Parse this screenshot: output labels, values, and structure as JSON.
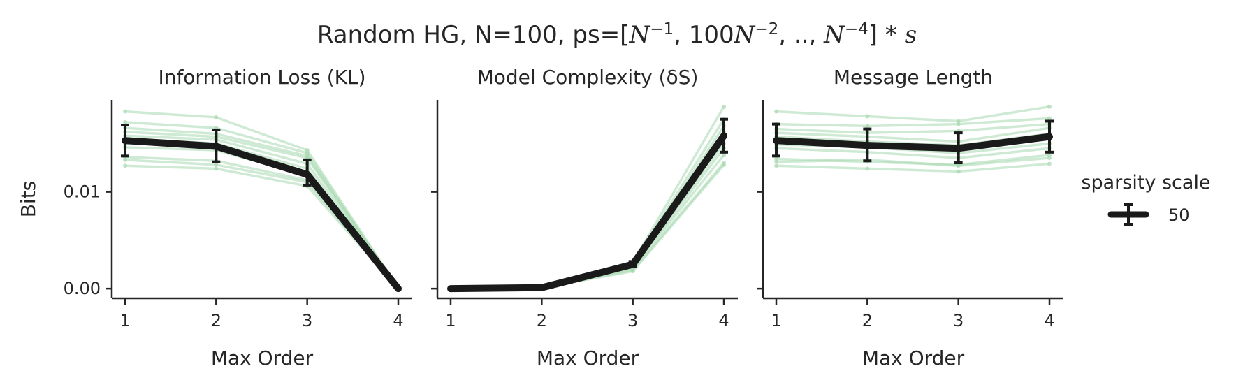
{
  "figure": {
    "title_prefix": "Random HG, N=100, ps=[",
    "title_t1": "N",
    "title_e1": "−1",
    "title_sep1": ", 100",
    "title_t2": "N",
    "title_e2": "−2",
    "title_sep2": ", ..,  ",
    "title_t3": "N",
    "title_e3": "−4",
    "title_end": "] * ",
    "title_s": "s"
  },
  "legend": {
    "title": "sparsity scale",
    "entries": [
      {
        "label": "50",
        "color": "#1a1a1a"
      }
    ]
  },
  "colors": {
    "mean": "#1a1a1a",
    "samples": "#a8d8b0",
    "axis": "#262626"
  },
  "chart_data": [
    {
      "type": "line",
      "title": "Information Loss (KL)",
      "xlabel": "Max Order",
      "ylabel": "Bits",
      "x": [
        1,
        2,
        3,
        4
      ],
      "xticks": [
        "1",
        "2",
        "3",
        "4"
      ],
      "yticks": [
        {
          "value": 0.0,
          "label": "0.00"
        },
        {
          "value": 0.01,
          "label": "0.01"
        }
      ],
      "ylim": [
        -0.001,
        0.0195
      ],
      "mean": {
        "name": "50",
        "values": [
          0.0153,
          0.0147,
          0.0118,
          0.0
        ],
        "err_low": [
          0.0137,
          0.0131,
          0.0107,
          0.0
        ],
        "err_high": [
          0.0169,
          0.0164,
          0.0133,
          0.0
        ]
      },
      "samples": [
        [
          0.0183,
          0.0177,
          0.0143,
          0.0
        ],
        [
          0.0172,
          0.0166,
          0.014,
          0.0
        ],
        [
          0.0166,
          0.016,
          0.0137,
          0.0
        ],
        [
          0.0162,
          0.0157,
          0.0135,
          0.0
        ],
        [
          0.0158,
          0.0154,
          0.0129,
          0.0
        ],
        [
          0.0155,
          0.015,
          0.0124,
          0.0
        ],
        [
          0.015,
          0.0147,
          0.012,
          0.0
        ],
        [
          0.0146,
          0.0143,
          0.0117,
          0.0
        ],
        [
          0.0136,
          0.0132,
          0.0112,
          0.0
        ],
        [
          0.0133,
          0.0128,
          0.011,
          0.0
        ],
        [
          0.0127,
          0.0124,
          0.0106,
          0.0
        ]
      ]
    },
    {
      "type": "line",
      "title": "Model Complexity (δS)",
      "xlabel": "Max Order",
      "ylabel": "",
      "x": [
        1,
        2,
        3,
        4
      ],
      "xticks": [
        "1",
        "2",
        "3",
        "4"
      ],
      "yticks": [
        {
          "value": 0.0,
          "label": ""
        },
        {
          "value": 0.01,
          "label": ""
        }
      ],
      "ylim": [
        -0.001,
        0.0195
      ],
      "mean": {
        "name": "50",
        "values": [
          0.0,
          0.0001,
          0.0025,
          0.0158
        ],
        "err_low": [
          0.0,
          0.0001,
          0.0023,
          0.0141
        ],
        "err_high": [
          0.0,
          0.0001,
          0.0028,
          0.0175
        ]
      },
      "samples": [
        [
          0.0,
          0.0001,
          0.0027,
          0.0188
        ],
        [
          0.0,
          0.0001,
          0.0026,
          0.0175
        ],
        [
          0.0,
          0.0001,
          0.0025,
          0.0168
        ],
        [
          0.0,
          0.0001,
          0.0025,
          0.0162
        ],
        [
          0.0,
          0.0001,
          0.0024,
          0.0157
        ],
        [
          0.0,
          0.0001,
          0.0023,
          0.015
        ],
        [
          0.0,
          0.0001,
          0.0022,
          0.0145
        ],
        [
          0.0,
          0.0001,
          0.0021,
          0.0138
        ],
        [
          0.0,
          0.0001,
          0.0019,
          0.013
        ],
        [
          0.0,
          0.0001,
          0.0018,
          0.0128
        ]
      ]
    },
    {
      "type": "line",
      "title": "Message Length",
      "xlabel": "Max Order",
      "ylabel": "",
      "x": [
        1,
        2,
        3,
        4
      ],
      "xticks": [
        "1",
        "2",
        "3",
        "4"
      ],
      "yticks": [
        {
          "value": 0.0,
          "label": ""
        },
        {
          "value": 0.01,
          "label": ""
        }
      ],
      "ylim": [
        -0.001,
        0.0195
      ],
      "mean": {
        "name": "50",
        "values": [
          0.0153,
          0.0148,
          0.0145,
          0.0157
        ],
        "err_low": [
          0.0137,
          0.0132,
          0.013,
          0.0141
        ],
        "err_high": [
          0.017,
          0.0165,
          0.0161,
          0.0173
        ]
      },
      "samples": [
        [
          0.0183,
          0.0178,
          0.0173,
          0.0188
        ],
        [
          0.017,
          0.0168,
          0.017,
          0.0176
        ],
        [
          0.0165,
          0.0161,
          0.0163,
          0.017
        ],
        [
          0.0161,
          0.0157,
          0.0152,
          0.0166
        ],
        [
          0.0157,
          0.0152,
          0.0148,
          0.016
        ],
        [
          0.0153,
          0.0149,
          0.0144,
          0.0155
        ],
        [
          0.0149,
          0.0146,
          0.014,
          0.015
        ],
        [
          0.0145,
          0.0141,
          0.0135,
          0.0145
        ],
        [
          0.0134,
          0.0131,
          0.0128,
          0.0138
        ],
        [
          0.0131,
          0.0133,
          0.0127,
          0.0135
        ],
        [
          0.0127,
          0.0124,
          0.0121,
          0.0129
        ]
      ]
    }
  ]
}
